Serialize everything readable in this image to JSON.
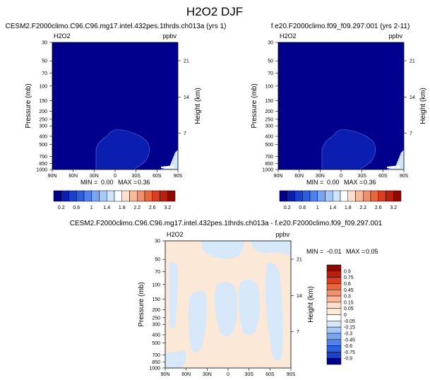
{
  "figure": {
    "title": "H2O2 DJF"
  },
  "chart_data": [
    {
      "type": "heatmap",
      "title": "CESM2.F2000climo.C96.C96.mg17.intel.432pes.1thrds.ch013a (yrs 1)",
      "variable": "H2O2",
      "units": "ppbv",
      "ylabel": "Pressure (mb)",
      "ylabel_right": "Height (km)",
      "x_ticks": [
        "90N",
        "60N",
        "30N",
        "0",
        "30S",
        "60S",
        "90S"
      ],
      "y_ticks": [
        "30",
        "50",
        "70",
        "100",
        "150",
        "200",
        "250",
        "300",
        "400",
        "500",
        "700",
        "850",
        "1000"
      ],
      "height_ticks": [
        "21",
        "14",
        "7"
      ],
      "stats": {
        "min_label": "MIN =",
        "min": "0.00",
        "max_label": "MAX =",
        "max": "0.36"
      },
      "colorbar": {
        "orientation": "horizontal",
        "labels": [
          "0.2",
          "0.6",
          "1",
          "1.4",
          "1.8",
          "2.2",
          "2.6",
          "3.2"
        ],
        "colors": [
          "#00008c",
          "#0a1fb0",
          "#1a3fc8",
          "#2a5fe0",
          "#5080ee",
          "#7aa5f2",
          "#a7c8f6",
          "#d0e4fa",
          "#ffffff",
          "#fde0cc",
          "#f9b99a",
          "#f2906c",
          "#e8673f",
          "#d83e1f",
          "#bb1f0d",
          "#8c0a00"
        ]
      },
      "regions": [
        {
          "name": "background",
          "value": 0.1,
          "color": "#00008c"
        },
        {
          "name": "tropical-lower",
          "value": 0.25,
          "color": "#0a1fb0"
        },
        {
          "name": "near-surface-south",
          "value": 0.35,
          "color": "#d0e4fa"
        }
      ]
    },
    {
      "type": "heatmap",
      "title": "f.e20.F2000climo.f09_f09.297.001 (yrs 2-11)",
      "variable": "H2O2",
      "units": "ppbv",
      "ylabel": "Pressure (mb)",
      "ylabel_right": "Height (km)",
      "x_ticks": [
        "90N",
        "60N",
        "30N",
        "0",
        "30S",
        "60S",
        "90S"
      ],
      "y_ticks": [
        "30",
        "50",
        "70",
        "100",
        "150",
        "200",
        "250",
        "300",
        "400",
        "500",
        "700",
        "850",
        "1000"
      ],
      "height_ticks": [
        "21",
        "14",
        "7"
      ],
      "stats": {
        "min_label": "MIN =",
        "min": "0.00",
        "max_label": "MAX =",
        "max": "0.36"
      },
      "colorbar": {
        "orientation": "horizontal",
        "labels": [
          "0.2",
          "0.6",
          "1",
          "1.4",
          "1.8",
          "2.2",
          "2.6",
          "3.2"
        ],
        "colors": [
          "#00008c",
          "#0a1fb0",
          "#1a3fc8",
          "#2a5fe0",
          "#5080ee",
          "#7aa5f2",
          "#a7c8f6",
          "#d0e4fa",
          "#ffffff",
          "#fde0cc",
          "#f9b99a",
          "#f2906c",
          "#e8673f",
          "#d83e1f",
          "#bb1f0d",
          "#8c0a00"
        ]
      },
      "regions": [
        {
          "name": "background",
          "value": 0.1,
          "color": "#00008c"
        },
        {
          "name": "tropical-lower",
          "value": 0.25,
          "color": "#0a1fb0"
        },
        {
          "name": "near-surface-south",
          "value": 0.35,
          "color": "#d0e4fa"
        }
      ]
    },
    {
      "type": "heatmap",
      "title": "CESM2.F2000climo.C96.C96.mg17.intel.432pes.1thrds.ch013a - f.e20.F2000climo.f09_f09.297.001",
      "variable": "H2O2",
      "units": "ppbv",
      "ylabel": "Pressure (mb)",
      "ylabel_right": "Height (km)",
      "x_ticks": [
        "90N",
        "60N",
        "30N",
        "0",
        "30S",
        "60S",
        "90S"
      ],
      "y_ticks": [
        "30",
        "50",
        "70",
        "100",
        "150",
        "200",
        "250",
        "300",
        "400",
        "500",
        "700",
        "850",
        "1000"
      ],
      "height_ticks": [
        "21",
        "14",
        "7"
      ],
      "stats": {
        "min_label": "MIN =",
        "min": "-0.01",
        "max_label": "MAX =",
        "max": "0.05"
      },
      "colorbar": {
        "orientation": "vertical",
        "labels": [
          "0.9",
          "0.75",
          "0.6",
          "0.45",
          "0.3",
          "0.15",
          "0.05",
          "0",
          "-0.05",
          "-0.15",
          "-0.3",
          "-0.45",
          "-0.6",
          "-0.75",
          "-0.9"
        ],
        "colors": [
          "#8c0a00",
          "#bb1f0d",
          "#d83e1f",
          "#e8673f",
          "#f2906c",
          "#f9b99a",
          "#fde0cc",
          "#fbe8d7",
          "#ffffff",
          "#d7e8fb",
          "#a7c8f6",
          "#7aa5f2",
          "#5080ee",
          "#2a5fe0",
          "#1a3fc8",
          "#00008c"
        ]
      },
      "regions": [
        {
          "name": "background",
          "value": 0.02,
          "color": "#fbe8d7"
        },
        {
          "name": "negative-patches",
          "value": -0.02,
          "color": "#d7e8fb"
        }
      ]
    }
  ]
}
